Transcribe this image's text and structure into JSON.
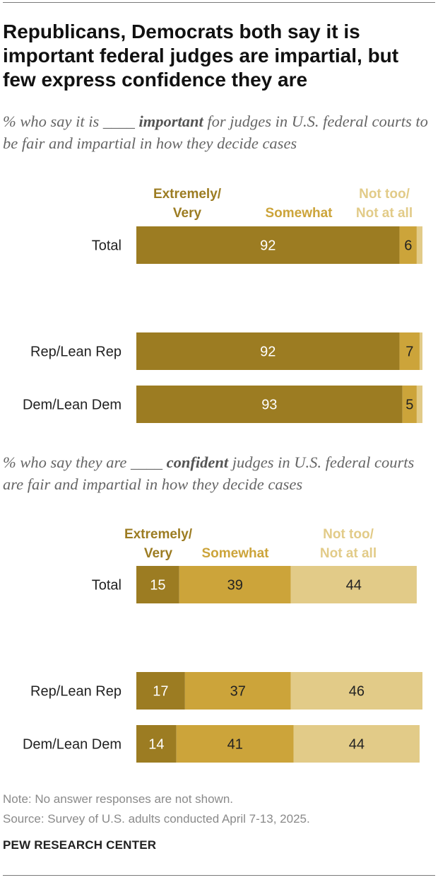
{
  "title": "Republicans, Democrats both say it is important federal judges are impartial, but few express confidence they are",
  "subtitle1": {
    "before": "% who say it is ____ ",
    "emphasis": "important",
    "after": " for judges in U.S. federal courts to be fair and impartial in how they decide cases"
  },
  "subtitle2": {
    "before": "% who say they are ____ ",
    "emphasis": "confident",
    "after": " judges in U.S. federal courts are fair and impartial in how they decide cases"
  },
  "colors": {
    "extremely_very": "#9c7c22",
    "somewhat": "#cca43a",
    "not_too": "#e2cb88"
  },
  "chart_data": [
    {
      "type": "bar",
      "orientation": "horizontal",
      "stacked": true,
      "categories": [
        "Total",
        "Rep/Lean Rep",
        "Dem/Lean Dem"
      ],
      "series": [
        {
          "name": "Extremely/ Very",
          "values": [
            92,
            92,
            93
          ],
          "labels": [
            "92",
            "92",
            "93"
          ]
        },
        {
          "name": "Somewhat",
          "values": [
            6,
            7,
            5
          ],
          "labels": [
            "6",
            "7",
            "5"
          ]
        },
        {
          "name": "Not too/ Not at all",
          "values": [
            2,
            1,
            2
          ],
          "labels": [
            "",
            "",
            ""
          ]
        }
      ],
      "xlim": [
        0,
        100
      ]
    },
    {
      "type": "bar",
      "orientation": "horizontal",
      "stacked": true,
      "categories": [
        "Total",
        "Rep/Lean Rep",
        "Dem/Lean Dem"
      ],
      "series": [
        {
          "name": "Extremely/ Very",
          "values": [
            15,
            17,
            14
          ],
          "labels": [
            "15",
            "17",
            "14"
          ]
        },
        {
          "name": "Somewhat",
          "values": [
            39,
            37,
            41
          ],
          "labels": [
            "39",
            "37",
            "41"
          ]
        },
        {
          "name": "Not too/ Not at all",
          "values": [
            44,
            46,
            44
          ],
          "labels": [
            "44",
            "46",
            "44"
          ]
        }
      ],
      "xlim": [
        0,
        100
      ]
    }
  ],
  "note": "Note: No answer responses are not shown.",
  "source": "Source: Survey of U.S. adults conducted April 7-13, 2025.",
  "footer": "PEW RESEARCH CENTER"
}
